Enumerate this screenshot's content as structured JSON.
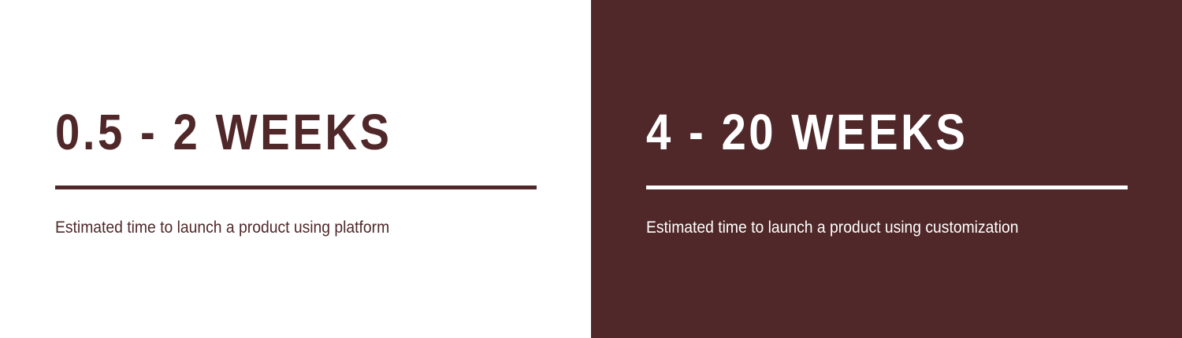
{
  "panels": [
    {
      "headline": "0.5 - 2 WEEKS",
      "caption": "Estimated time to launch a product using platform"
    },
    {
      "headline": "4 - 20 WEEKS",
      "caption": "Estimated time to launch a product using customization"
    }
  ],
  "colors": {
    "brand": "#502829",
    "background_light": "#ffffff",
    "text_on_dark": "#ffffff"
  }
}
